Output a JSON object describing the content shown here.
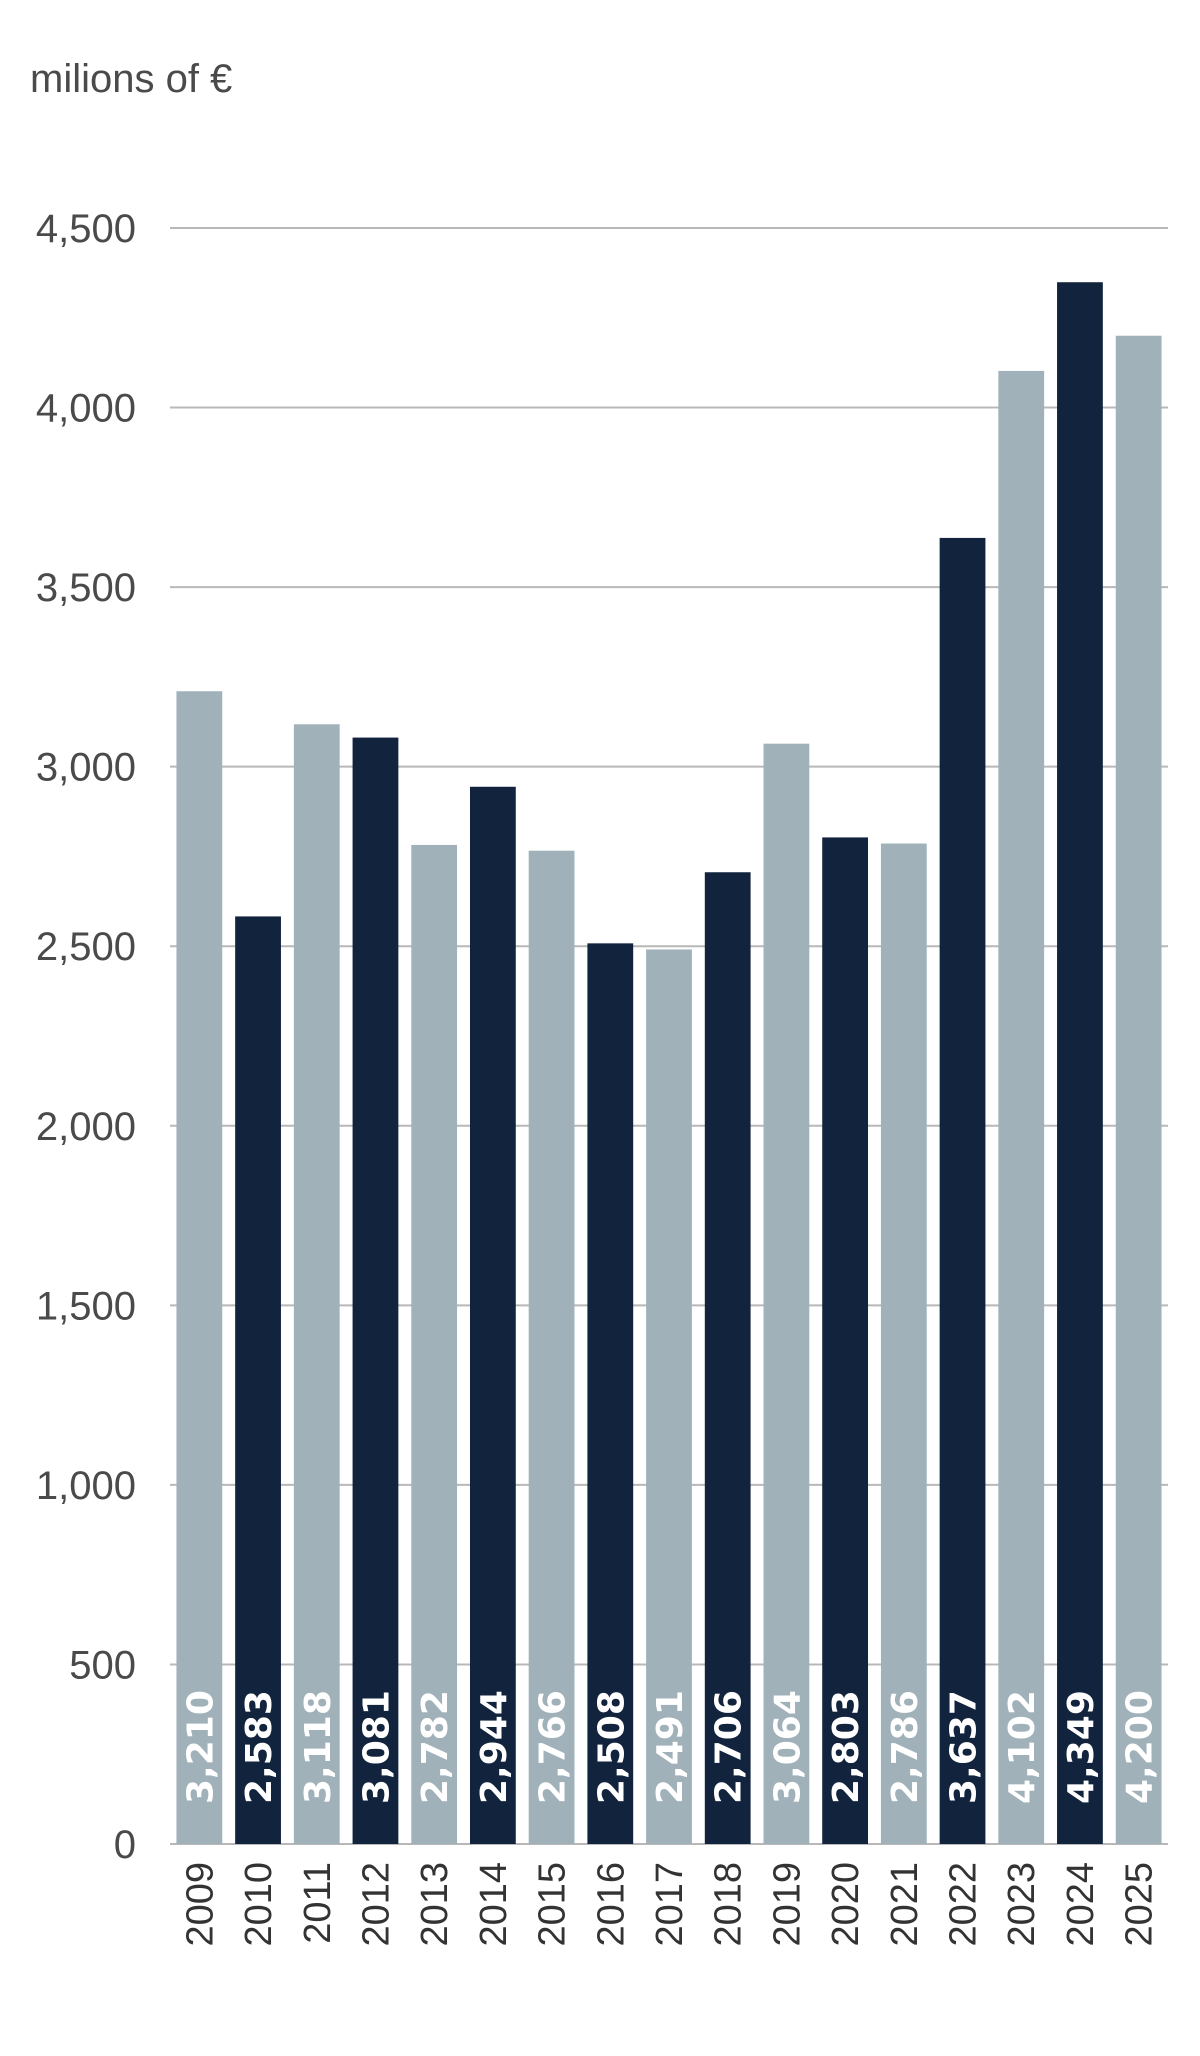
{
  "chart_data": {
    "type": "bar",
    "unit_label": "milions of €",
    "categories": [
      "2009",
      "2010",
      "2011",
      "2012",
      "2013",
      "2014",
      "2015",
      "2016",
      "2017",
      "2018",
      "2019",
      "2020",
      "2021",
      "2022",
      "2023",
      "2024",
      "2025"
    ],
    "values": [
      3210,
      2583,
      3118,
      3081,
      2782,
      2944,
      2766,
      2508,
      2491,
      2706,
      3064,
      2803,
      2786,
      3637,
      4102,
      4349,
      4200
    ],
    "value_labels": [
      "3,210",
      "2,583",
      "3,118",
      "3,081",
      "2,782",
      "2,944",
      "2,766",
      "2,508",
      "2,491",
      "2,706",
      "3,064",
      "2,803",
      "2,786",
      "3,637",
      "4,102",
      "4,349",
      "4,200"
    ],
    "bar_colors": [
      "#a0b1b9",
      "#12233d",
      "#a0b1b9",
      "#12233d",
      "#a0b1b9",
      "#12233d",
      "#a0b1b9",
      "#12233d",
      "#a0b1b9",
      "#12233d",
      "#a0b1b9",
      "#12233d",
      "#a0b1b9",
      "#12233d",
      "#a0b1b9",
      "#12233d",
      "#a0b1b9"
    ],
    "yticks": [
      0,
      500,
      1000,
      1500,
      2000,
      2500,
      3000,
      3500,
      4000,
      4500
    ],
    "ytick_labels": [
      "0",
      "500",
      "1,000",
      "1,500",
      "2,000",
      "2,500",
      "3,000",
      "3,500",
      "4,000",
      "4,500"
    ],
    "ylim": [
      0,
      4500
    ],
    "grid": true,
    "legend": false
  }
}
